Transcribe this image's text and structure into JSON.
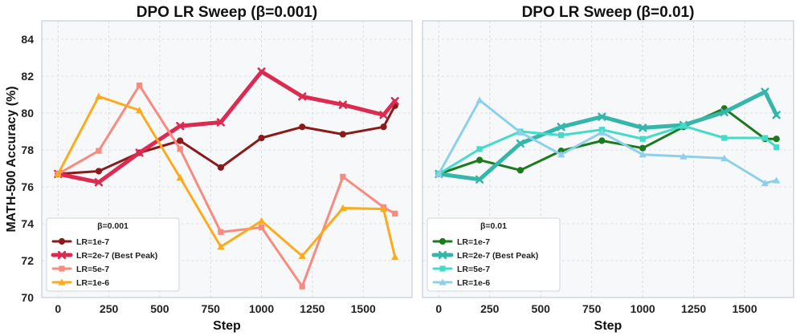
{
  "chart_data": [
    {
      "type": "line",
      "title": "DPO LR Sweep (β=0.001)",
      "xlabel": "Step",
      "ylabel": "MATH-500 Accuracy (%)",
      "xlim": [
        -80,
        1740
      ],
      "ylim": [
        70,
        85
      ],
      "xticks": [
        0,
        250,
        500,
        750,
        1000,
        1250,
        1500
      ],
      "yticks": [
        70,
        72,
        74,
        76,
        78,
        80,
        82,
        84
      ],
      "grid": true,
      "legend": {
        "title": "β=0.001",
        "position": "lower-left"
      },
      "series": [
        {
          "name": "LR=1e-7",
          "color": "#8b1a1a",
          "marker": "circle",
          "width": 3,
          "x": [
            0,
            200,
            400,
            600,
            800,
            1000,
            1200,
            1400,
            1600,
            1656
          ],
          "y": [
            76.7,
            76.85,
            77.85,
            78.5,
            77.05,
            78.65,
            79.25,
            78.85,
            79.25,
            80.4
          ]
        },
        {
          "name": "LR=2e-7 (Best Peak)",
          "color": "#dc2a50",
          "marker": "x",
          "width": 5,
          "x": [
            0,
            200,
            400,
            600,
            800,
            1000,
            1200,
            1400,
            1600,
            1656
          ],
          "y": [
            76.7,
            76.25,
            77.85,
            79.3,
            79.5,
            82.25,
            80.9,
            80.45,
            79.9,
            80.65
          ]
        },
        {
          "name": "LR=5e-7",
          "color": "#f88a80",
          "marker": "square",
          "width": 3,
          "x": [
            0,
            200,
            400,
            600,
            800,
            1000,
            1200,
            1400,
            1600,
            1656
          ],
          "y": [
            76.7,
            77.95,
            81.5,
            78.05,
            73.55,
            73.8,
            70.6,
            76.55,
            74.9,
            74.55
          ]
        },
        {
          "name": "LR=1e-6",
          "color": "#fbab1c",
          "marker": "triangle",
          "width": 3,
          "x": [
            0,
            200,
            400,
            600,
            800,
            1000,
            1200,
            1400,
            1600,
            1656
          ],
          "y": [
            76.7,
            80.9,
            80.15,
            76.5,
            72.75,
            74.15,
            72.25,
            74.85,
            74.8,
            72.2
          ]
        }
      ]
    },
    {
      "type": "line",
      "title": "DPO LR Sweep (β=0.01)",
      "xlabel": "Step",
      "ylabel": "",
      "xlim": [
        -80,
        1740
      ],
      "ylim": [
        70,
        85
      ],
      "xticks": [
        0,
        250,
        500,
        750,
        1000,
        1250,
        1500
      ],
      "yticks": [],
      "grid": true,
      "legend": {
        "title": "β=0.01",
        "position": "lower-left"
      },
      "series": [
        {
          "name": "LR=1e-7",
          "color": "#1b7a1b",
          "marker": "circle",
          "width": 3,
          "x": [
            0,
            200,
            400,
            600,
            800,
            1000,
            1200,
            1400,
            1600,
            1656
          ],
          "y": [
            76.7,
            77.45,
            76.9,
            77.95,
            78.5,
            78.1,
            79.25,
            80.25,
            78.6,
            78.6
          ]
        },
        {
          "name": "LR=2e-7 (Best Peak)",
          "color": "#36b5aa",
          "marker": "x",
          "width": 5,
          "x": [
            0,
            200,
            400,
            600,
            800,
            1000,
            1200,
            1400,
            1600,
            1656
          ],
          "y": [
            76.7,
            76.4,
            78.35,
            79.25,
            79.8,
            79.2,
            79.35,
            80.05,
            81.15,
            79.9
          ]
        },
        {
          "name": "LR=5e-7",
          "color": "#43dcc8",
          "marker": "square",
          "width": 3,
          "x": [
            0,
            200,
            400,
            600,
            800,
            1000,
            1200,
            1400,
            1600,
            1656
          ],
          "y": [
            76.7,
            78.05,
            79.0,
            78.8,
            79.1,
            78.6,
            79.3,
            78.65,
            78.65,
            78.15
          ]
        },
        {
          "name": "LR=1e-6",
          "color": "#8ed0ea",
          "marker": "triangle",
          "width": 3,
          "x": [
            0,
            200,
            400,
            600,
            800,
            1000,
            1200,
            1400,
            1600,
            1656
          ],
          "y": [
            76.7,
            80.7,
            78.95,
            77.75,
            78.95,
            77.75,
            77.65,
            77.55,
            76.2,
            76.35
          ]
        }
      ]
    }
  ]
}
